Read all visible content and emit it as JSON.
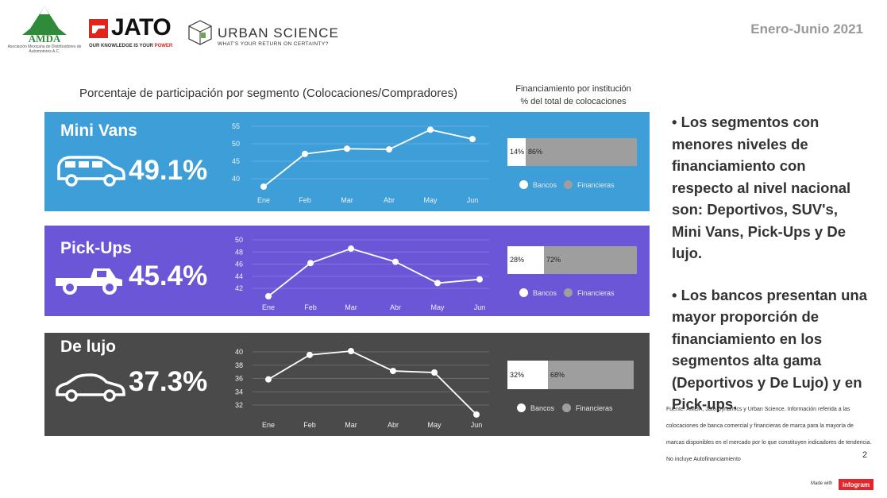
{
  "header": {
    "amda_logo": "AMDA",
    "amda_subtitle": "Asociación Mexicana de Distribuidores de Automotores A.C.",
    "jato_logo": "JATO",
    "jato_tagline_1": "OUR KNOWLEDGE IS YOUR",
    "jato_tagline_2": "POWER",
    "urban_logo": "URBAN SCIENCE",
    "urban_tagline": "WHAT'S YOUR RETURN ON CERTAINTY?",
    "period": "Enero-Junio  2021"
  },
  "main_title": "Porcentaje de participación por segmento (Colocaciones/Compradores)",
  "fin_title_1": "Financiamiento por institución",
  "fin_title_2": "% del total de colocaciones",
  "chart_data": [
    {
      "type": "line",
      "segment": "Mini Vans",
      "share": "49.1%",
      "icon": "minivan-icon",
      "color": "#3d9ed8",
      "categories": [
        "Ene",
        "Feb",
        "Mar",
        "Abr",
        "May",
        "Jun"
      ],
      "values": [
        37.5,
        47.0,
        48.5,
        48.3,
        54.0,
        51.3
      ],
      "yticks": [
        "55",
        "50",
        "45",
        "40"
      ],
      "ylim": [
        37.5,
        55
      ],
      "financing": {
        "bancos": 14,
        "financieras": 86,
        "bancos_label": "14%",
        "financieras_label": "86%"
      },
      "legend": [
        "Bancos",
        "Financieras"
      ]
    },
    {
      "type": "line",
      "segment": "Pick-Ups",
      "share": "45.4%",
      "icon": "pickup-truck-icon",
      "color": "#6c56d8",
      "categories": [
        "Ene",
        "Feb",
        "Mar",
        "Abr",
        "May",
        "Jun"
      ],
      "values": [
        41.0,
        46.3,
        48.6,
        46.5,
        43.1,
        43.7
      ],
      "yticks": [
        "50",
        "48",
        "46",
        "44",
        "42"
      ],
      "ylim": [
        41,
        50
      ],
      "financing": {
        "bancos": 28,
        "financieras": 72,
        "bancos_label": "28%",
        "financieras_label": "72%"
      },
      "legend": [
        "Bancos",
        "Financieras"
      ]
    },
    {
      "type": "line",
      "segment": "De lujo",
      "share": "37.3%",
      "icon": "luxury-car-icon",
      "color": "#4a4a4a",
      "categories": [
        "Ene",
        "Feb",
        "Mar",
        "Abr",
        "May",
        "Jun"
      ],
      "values": [
        36.4,
        39.6,
        40.1,
        37.5,
        37.3,
        31.8
      ],
      "yticks": [
        "40",
        "38",
        "36",
        "34",
        "32"
      ],
      "ylim": [
        32,
        40
      ],
      "financing": {
        "bancos": 32,
        "financieras": 68,
        "bancos_label": "32%",
        "financieras_label": "68%"
      },
      "legend": [
        "Bancos",
        "Financieras"
      ]
    }
  ],
  "bullets": [
    "• Los segmentos con menores niveles de financiamiento con respecto al nivel nacional son: Deportivos, SUV's, Mini Vans, Pick-Ups y De lujo.",
    "• Los bancos presentan una mayor proporción de financiamiento en los segmentos alta gama (Deportivos y De Lujo) y en Pick-ups."
  ],
  "source": "Fuente: AMDA, Jato Dynamics y Urban Science. Información referida a las colocaciones de banca comercial y financieras de marca para la mayoría de marcas disponibles en el mercado por lo que constituyen indicadores de tendencia. No incluye Autofinanciamiento",
  "page_number": "2",
  "footer": {
    "made_with": "Made with",
    "infogram": "infogram"
  }
}
